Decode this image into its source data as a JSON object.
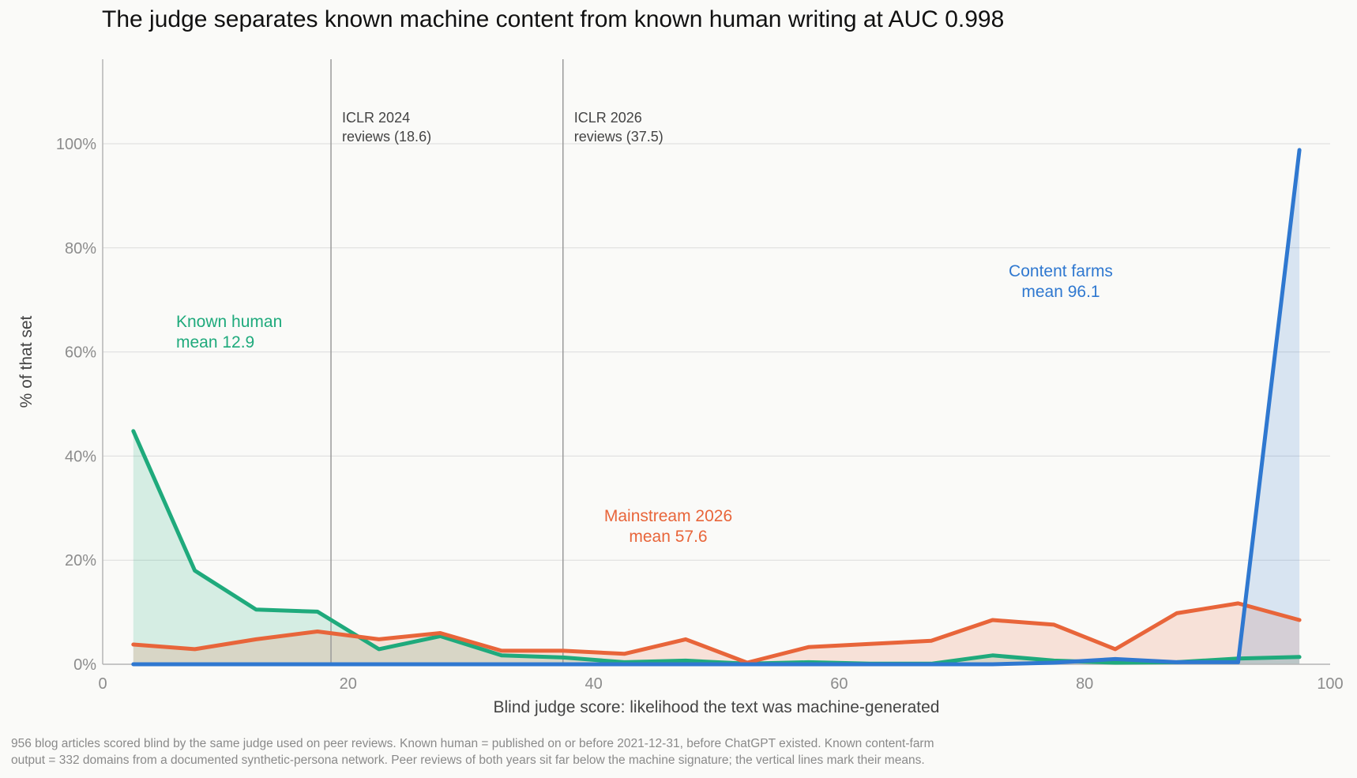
{
  "chart_data": {
    "type": "line",
    "title": "The judge separates known machine content from known human writing at AUC 0.998",
    "xlabel": "Blind judge score: likelihood the text was machine-generated",
    "ylabel": "% of that set",
    "xlim": [
      0,
      100
    ],
    "ylim": [
      0,
      100
    ],
    "xticks": [
      "0",
      "20",
      "40",
      "60",
      "80",
      "100"
    ],
    "yticks": [
      "0%",
      "20%",
      "40%",
      "60%",
      "80%",
      "100%"
    ],
    "grid": "horizontal",
    "x": [
      2.5,
      7.5,
      12.5,
      17.5,
      22.5,
      27.5,
      32.5,
      37.5,
      42.5,
      47.5,
      52.5,
      57.5,
      62.5,
      67.5,
      72.5,
      77.5,
      82.5,
      87.5,
      92.5,
      97.5
    ],
    "series": [
      {
        "key": "human",
        "color": "#1faa7c",
        "values": [
          44.8,
          18.0,
          10.5,
          10.1,
          2.9,
          5.4,
          1.7,
          1.3,
          0.4,
          0.7,
          0.1,
          0.4,
          0.1,
          0.1,
          1.7,
          0.7,
          0.3,
          0.4,
          1.1,
          1.4
        ]
      },
      {
        "key": "mainstream",
        "color": "#e8653a",
        "values": [
          3.8,
          2.9,
          4.8,
          6.3,
          4.8,
          6.0,
          2.6,
          2.6,
          2.0,
          4.8,
          0.3,
          3.3,
          3.9,
          4.5,
          8.5,
          7.6,
          2.9,
          9.8,
          11.7,
          8.5
        ]
      },
      {
        "key": "farms",
        "color": "#2f78d0",
        "values": [
          0,
          0,
          0,
          0,
          0,
          0,
          0,
          0,
          0,
          0,
          0,
          0,
          0,
          0,
          0,
          0.3,
          1.0,
          0.4,
          0.4,
          98.8
        ]
      }
    ],
    "annotations": [
      {
        "key": "human",
        "lines": [
          "Known human",
          "mean 12.9"
        ]
      },
      {
        "key": "mainstream",
        "lines": [
          "Mainstream 2026",
          "mean 57.6"
        ]
      },
      {
        "key": "farms",
        "lines": [
          "Content farms",
          "mean 96.1"
        ]
      }
    ],
    "vlines": [
      {
        "x": 18.6,
        "lines": [
          "ICLR 2024",
          "reviews (18.6)"
        ]
      },
      {
        "x": 37.5,
        "lines": [
          "ICLR 2026",
          "reviews (37.5)"
        ]
      }
    ]
  },
  "footnote": {
    "line1": "956 blog articles scored blind by the same judge used on peer reviews. Known human = published on or before 2021-12-31, before ChatGPT existed. Known content-farm",
    "line2": "output = 332 domains from a documented synthetic-persona network. Peer reviews of both years sit far below the machine signature; the vertical lines mark their means."
  }
}
